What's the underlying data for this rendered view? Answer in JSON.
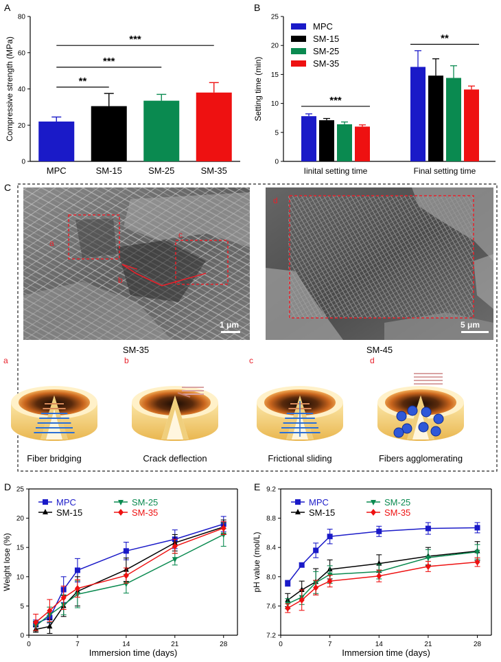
{
  "panels": {
    "A": "A",
    "B": "B",
    "C": "C",
    "D": "D",
    "E": "E"
  },
  "chart_data": [
    {
      "id": "A",
      "type": "bar",
      "categories": [
        "MPC",
        "SM-15",
        "SM-25",
        "SM-35"
      ],
      "values": [
        22,
        30.5,
        33.5,
        38
      ],
      "errors": [
        2.5,
        7,
        3.5,
        5.5
      ],
      "colors": [
        "#1a1ac8",
        "#000000",
        "#0a8a50",
        "#ee1111"
      ],
      "ylabel": "Compressive strength (MPa)",
      "ylim": [
        0,
        80
      ],
      "yticks": [
        0,
        20,
        40,
        60,
        80
      ],
      "significance": [
        {
          "from": 0,
          "to": 1,
          "label": "**",
          "level": 41
        },
        {
          "from": 0,
          "to": 2,
          "label": "***",
          "level": 52
        },
        {
          "from": 0,
          "to": 3,
          "label": "***",
          "level": 64
        }
      ]
    },
    {
      "id": "B",
      "type": "bar",
      "groups": [
        "Iinital setting time",
        "Final setting time"
      ],
      "series": [
        {
          "name": "MPC",
          "color": "#1a1ac8",
          "values": [
            7.8,
            16.3
          ],
          "errors": [
            0.4,
            2.8
          ]
        },
        {
          "name": "SM-15",
          "color": "#000000",
          "values": [
            7.1,
            14.8
          ],
          "errors": [
            0.3,
            2.9
          ]
        },
        {
          "name": "SM-25",
          "color": "#0a8a50",
          "values": [
            6.4,
            14.4
          ],
          "errors": [
            0.4,
            2.1
          ]
        },
        {
          "name": "SM-35",
          "color": "#ee1111",
          "values": [
            6.0,
            12.4
          ],
          "errors": [
            0.3,
            0.6
          ]
        }
      ],
      "ylabel": "Setting time (min)",
      "ylim": [
        0,
        25
      ],
      "yticks": [
        0,
        5,
        10,
        15,
        20,
        25
      ],
      "significance": [
        {
          "group": 0,
          "label": "***",
          "level": 9.5
        },
        {
          "group": 1,
          "label": "**",
          "level": 20.2
        }
      ]
    },
    {
      "id": "D",
      "type": "line",
      "x": [
        1,
        3,
        5,
        7,
        14,
        21,
        28
      ],
      "series": [
        {
          "name": "MPC",
          "color": "#1a1ac8",
          "marker": "square",
          "values": [
            2.0,
            3.0,
            7.8,
            11.1,
            14.4,
            16.4,
            19.0
          ],
          "errors": [
            0.6,
            0.9,
            2.2,
            2.0,
            1.5,
            1.6,
            1.3
          ]
        },
        {
          "name": "SM-15",
          "color": "#000000",
          "marker": "triangle-up",
          "values": [
            1.0,
            1.5,
            5.0,
            7.5,
            11.2,
            15.8,
            18.5
          ],
          "errors": [
            0.5,
            1.2,
            1.8,
            2.5,
            2.0,
            1.4,
            1.2
          ]
        },
        {
          "name": "SM-25",
          "color": "#0a8a50",
          "marker": "triangle-down",
          "values": [
            1.6,
            3.5,
            5.2,
            7.0,
            8.8,
            13.0,
            17.2
          ],
          "errors": [
            0.8,
            1.3,
            1.7,
            2.3,
            1.6,
            1.0,
            2.0
          ]
        },
        {
          "name": "SM-35",
          "color": "#ee1111",
          "marker": "diamond",
          "values": [
            2.2,
            4.2,
            6.4,
            8.0,
            10.2,
            15.2,
            18.3
          ],
          "errors": [
            1.4,
            1.9,
            2.0,
            1.5,
            1.3,
            1.2,
            1.1
          ]
        }
      ],
      "xlabel": "Immersion time (days)",
      "ylabel": "Weight lose (%)",
      "xlim": [
        0,
        30
      ],
      "xticks": [
        0,
        7,
        14,
        21,
        28
      ],
      "ylim": [
        0,
        25
      ],
      "yticks": [
        0,
        5,
        10,
        15,
        20,
        25
      ]
    },
    {
      "id": "E",
      "type": "line",
      "x": [
        1,
        3,
        5,
        7,
        14,
        21,
        28
      ],
      "series": [
        {
          "name": "MPC",
          "color": "#1a1ac8",
          "marker": "square",
          "values": [
            7.91,
            8.16,
            8.36,
            8.55,
            8.62,
            8.66,
            8.67
          ],
          "errors": [
            0.04,
            0.03,
            0.1,
            0.1,
            0.07,
            0.08,
            0.07
          ]
        },
        {
          "name": "SM-15",
          "color": "#000000",
          "marker": "triangle-up",
          "values": [
            7.68,
            7.82,
            7.93,
            8.1,
            8.18,
            8.28,
            8.35
          ],
          "errors": [
            0.09,
            0.12,
            0.18,
            0.13,
            0.12,
            0.12,
            0.13
          ]
        },
        {
          "name": "SM-25",
          "color": "#0a8a50",
          "marker": "triangle-down",
          "values": [
            7.63,
            7.72,
            7.92,
            8.03,
            8.07,
            8.26,
            8.34
          ],
          "errors": [
            0.07,
            0.1,
            0.15,
            0.12,
            0.1,
            0.11,
            0.1
          ]
        },
        {
          "name": "SM-35",
          "color": "#ee1111",
          "marker": "diamond",
          "values": [
            7.57,
            7.68,
            7.85,
            7.94,
            8.01,
            8.14,
            8.2
          ],
          "errors": [
            0.06,
            0.14,
            0.1,
            0.08,
            0.08,
            0.07,
            0.06
          ]
        }
      ],
      "xlabel": "Immersion time (days)",
      "ylabel": "pH value (mol/L)",
      "xlim": [
        0,
        30
      ],
      "xticks": [
        0,
        7,
        14,
        21,
        28
      ],
      "ylim": [
        7.2,
        9.2
      ],
      "yticks": [
        7.2,
        7.6,
        8.0,
        8.4,
        8.8,
        9.2
      ]
    }
  ],
  "panel_c": {
    "sem_left_caption": "SM-35",
    "sem_right_caption": "SM-45",
    "scale_left": "1 μm",
    "scale_right": "5 μm",
    "region_a": "a",
    "region_b": "b",
    "region_c": "c",
    "region_d": "d",
    "mechanisms": [
      {
        "letter": "a",
        "label": "Fiber bridging"
      },
      {
        "letter": "b",
        "label": "Crack deflection"
      },
      {
        "letter": "c",
        "label": "Frictional sliding"
      },
      {
        "letter": "d",
        "label": "Fibers agglomerating"
      }
    ],
    "colors": {
      "marker": "#e8202a",
      "disk_top": "#fff1c9",
      "disk_side": "#f4d27a",
      "fiber": "#2a6fd6"
    }
  }
}
